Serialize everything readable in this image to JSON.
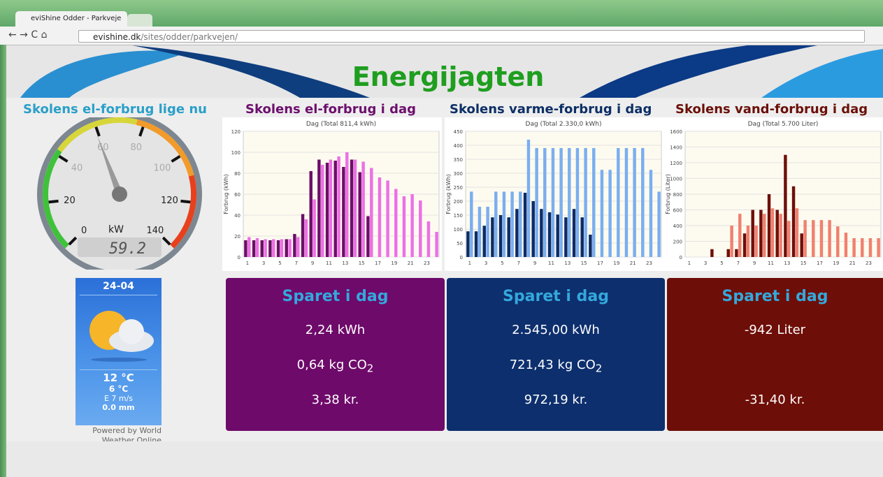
{
  "browser": {
    "tab_title": "eviShine Odder - Parkveje",
    "url_domain": "evishine.dk",
    "url_path": "/sites/odder/parkvejen/"
  },
  "header": {
    "title": "Energijagten"
  },
  "chart_data": [
    {
      "type": "gauge",
      "heading": "Skolens el-forbrug lige nu",
      "unit": "kW",
      "value": 59.2,
      "ylim": [
        0,
        140
      ],
      "yticks": [
        0,
        20,
        40,
        60,
        80,
        100,
        120,
        140
      ]
    },
    {
      "type": "bar",
      "heading": "Skolens el-forbrug i dag",
      "title": "Dag (Total 811,4 kWh)",
      "ylabel": "Forbrug (kWh)",
      "categories": [
        "1",
        null,
        "3",
        null,
        "5",
        null,
        "7",
        null,
        "9",
        null,
        "11",
        null,
        "13",
        null,
        "15",
        null,
        "17",
        null,
        "19",
        null,
        "21",
        null,
        "23",
        null
      ],
      "series": [
        {
          "color": "#6a0f66",
          "values": [
            16,
            16,
            16,
            16,
            16,
            17,
            22,
            41,
            82,
            93,
            90,
            92,
            86,
            93,
            81,
            39,
            null,
            null,
            null,
            null,
            null,
            null,
            null,
            null
          ]
        },
        {
          "color": "#ee6fe6",
          "values": [
            19,
            18,
            17,
            17,
            17,
            17,
            19,
            36,
            55,
            88,
            93,
            96,
            100,
            93,
            91,
            85,
            76,
            73,
            65,
            58,
            60,
            54,
            34,
            24
          ]
        }
      ],
      "ylim": [
        0,
        120
      ],
      "yticks": [
        0,
        20,
        40,
        60,
        80,
        100,
        120
      ],
      "grid": true
    },
    {
      "type": "bar",
      "heading": "Skolens varme-forbrug i dag",
      "title": "Dag (Total 2.330,0 kWh)",
      "ylabel": "Forbrug (kWh)",
      "categories": [
        "1",
        null,
        "3",
        null,
        "5",
        null,
        "7",
        null,
        "9",
        null,
        "11",
        null,
        "13",
        null,
        "15",
        null,
        "17",
        null,
        "19",
        null,
        "21",
        null,
        "23",
        null
      ],
      "series": [
        {
          "color": "#0d2b66",
          "values": [
            92,
            92,
            112,
            142,
            150,
            142,
            172,
            230,
            200,
            172,
            160,
            152,
            142,
            172,
            142,
            80,
            null,
            null,
            null,
            null,
            null,
            null,
            null,
            null
          ]
        },
        {
          "color": "#7aaef0",
          "values": [
            234,
            180,
            180,
            234,
            234,
            234,
            234,
            420,
            390,
            390,
            390,
            390,
            390,
            390,
            390,
            390,
            312,
            312,
            390,
            390,
            390,
            390,
            312,
            234
          ]
        }
      ],
      "ylim": [
        0,
        450
      ],
      "yticks": [
        0,
        50,
        100,
        150,
        200,
        250,
        300,
        350,
        400,
        450
      ],
      "grid": true
    },
    {
      "type": "bar",
      "heading": "Skolens vand-forbrug i dag",
      "title": "Dag (Total 5.700 Liter)",
      "ylabel": "Forbrug (Liter)",
      "categories": [
        "1",
        null,
        "3",
        null,
        "5",
        null,
        "7",
        null,
        "9",
        null,
        "11",
        null,
        "13",
        null,
        "15",
        null,
        "17",
        null,
        "19",
        null,
        "21",
        null,
        "23",
        null
      ],
      "series": [
        {
          "color": "#6e0f0a",
          "values": [
            0,
            0,
            0,
            100,
            0,
            100,
            100,
            300,
            600,
            600,
            800,
            600,
            1300,
            900,
            300,
            null,
            null,
            null,
            null,
            null,
            null,
            null,
            null,
            null
          ]
        },
        {
          "color": "#f08070",
          "values": [
            0,
            0,
            0,
            0,
            0,
            400,
            550,
            400,
            400,
            550,
            620,
            550,
            460,
            620,
            470,
            470,
            470,
            470,
            390,
            310,
            240,
            240,
            240,
            240
          ]
        }
      ],
      "ylim": [
        0,
        1600
      ],
      "yticks": [
        0,
        200,
        400,
        600,
        800,
        1000,
        1200,
        1400,
        1600
      ],
      "grid": true
    }
  ],
  "weather": {
    "date": "24-04",
    "temp_max": "12 °C",
    "temp_min": "6 °C",
    "wind": "E 7 m/s",
    "rain": "0.0 mm",
    "credit": "Powered by World Weather Online"
  },
  "savings": [
    {
      "heading": "Sparet i dag",
      "energy": "2,24 kWh",
      "co2": "0,64 kg CO",
      "co2_sub": "2",
      "money": "3,38 kr."
    },
    {
      "heading": "Sparet i dag",
      "energy": "2.545,00 kWh",
      "co2": "721,43 kg CO",
      "co2_sub": "2",
      "money": "972,19 kr."
    },
    {
      "heading": "Sparet i dag",
      "energy": "-942 Liter",
      "money": "-31,40 kr."
    }
  ]
}
